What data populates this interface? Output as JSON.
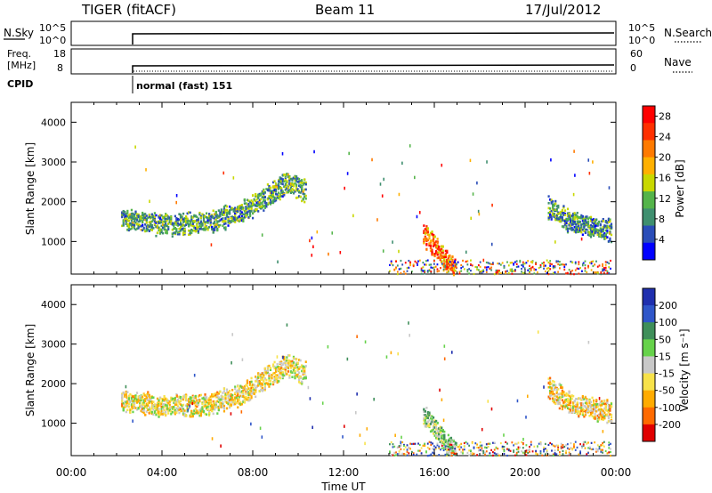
{
  "header": {
    "radar": "TIGER (fitACF)",
    "beam": "Beam 11",
    "date": "17/Jul/2012"
  },
  "status_panels": {
    "nsky": {
      "label": "N.Sky",
      "ticks": [
        "10^5",
        "10^0"
      ],
      "right_label": "N.Search",
      "right_ticks": [
        "10^5",
        "10^0"
      ]
    },
    "freq": {
      "label_line1": "Freq.",
      "label_line2": "[MHz]",
      "ticks": [
        "18",
        "8"
      ],
      "right_label": "Nave",
      "right_ticks": [
        "60",
        "0"
      ]
    },
    "cpid": {
      "label": "CPID",
      "text": "normal (fast) 151"
    }
  },
  "colors": {
    "power_scale": [
      "#0000ff",
      "#2a4db8",
      "#3f8f6f",
      "#54b44a",
      "#c8d800",
      "#ffb000",
      "#ff7a00",
      "#ff3000",
      "#ff0000"
    ],
    "velocity_scale": [
      "#1f2fae",
      "#2f56c9",
      "#3f8f5a",
      "#66d24a",
      "#c8c8c8",
      "#f7e24a",
      "#ffab00",
      "#ff6a00",
      "#e00000"
    ]
  },
  "chart_data": [
    {
      "type": "heatmap",
      "title": "Power",
      "ylabel": "Slant Range [km]",
      "ylim": [
        180,
        4500
      ],
      "yticks": [
        "1000",
        "2000",
        "3000",
        "4000"
      ],
      "colorbar": {
        "label": "Power [dB]",
        "ticks": [
          "4",
          "8",
          "12",
          "16",
          "20",
          "24",
          "28"
        ],
        "range": [
          0,
          30
        ]
      },
      "echo_bands": [
        {
          "t_start": 2.2,
          "t_end": 10.3,
          "range_km": [
            [
              2.2,
              1600
            ],
            [
              4.0,
              1450
            ],
            [
              6.0,
              1500
            ],
            [
              7.5,
              1750
            ],
            [
              9.5,
              2500
            ],
            [
              10.2,
              2300
            ]
          ],
          "power_dB": 10
        },
        {
          "t_start": 15.5,
          "t_end": 16.9,
          "range_km": [
            [
              15.5,
              1200
            ],
            [
              16.0,
              900
            ],
            [
              16.9,
              300
            ]
          ],
          "power_dB": 22
        },
        {
          "t_start": 21.0,
          "t_end": 23.8,
          "range_km": [
            [
              21.0,
              1900
            ],
            [
              22.0,
              1500
            ],
            [
              23.8,
              1300
            ]
          ],
          "power_dB": 9
        }
      ]
    },
    {
      "type": "heatmap",
      "title": "Velocity",
      "ylabel": "Slant Range [km]",
      "xlabel": "Time UT",
      "xticks": [
        "00:00",
        "04:00",
        "08:00",
        "12:00",
        "16:00",
        "20:00",
        "00:00"
      ],
      "ylim": [
        180,
        4500
      ],
      "yticks": [
        "1000",
        "2000",
        "3000",
        "4000"
      ],
      "colorbar": {
        "label": "Velocity [m s⁻¹]",
        "ticks": [
          "200",
          "100",
          "50",
          "15",
          "-15",
          "-50",
          "-100",
          "-200"
        ],
        "range": [
          -250,
          250
        ]
      },
      "echo_bands": [
        {
          "t_start": 2.2,
          "t_end": 10.3,
          "range_km": [
            [
              2.2,
              1600
            ],
            [
              4.0,
              1450
            ],
            [
              6.0,
              1500
            ],
            [
              7.5,
              1750
            ],
            [
              9.5,
              2500
            ],
            [
              10.2,
              2300
            ]
          ],
          "velocity": -40
        },
        {
          "t_start": 15.5,
          "t_end": 16.9,
          "range_km": [
            [
              15.5,
              1200
            ],
            [
              16.0,
              900
            ],
            [
              16.9,
              300
            ]
          ],
          "velocity": 30
        },
        {
          "t_start": 21.0,
          "t_end": 23.8,
          "range_km": [
            [
              21.0,
              1900
            ],
            [
              22.0,
              1500
            ],
            [
              23.8,
              1300
            ]
          ],
          "velocity": -60
        }
      ]
    }
  ]
}
